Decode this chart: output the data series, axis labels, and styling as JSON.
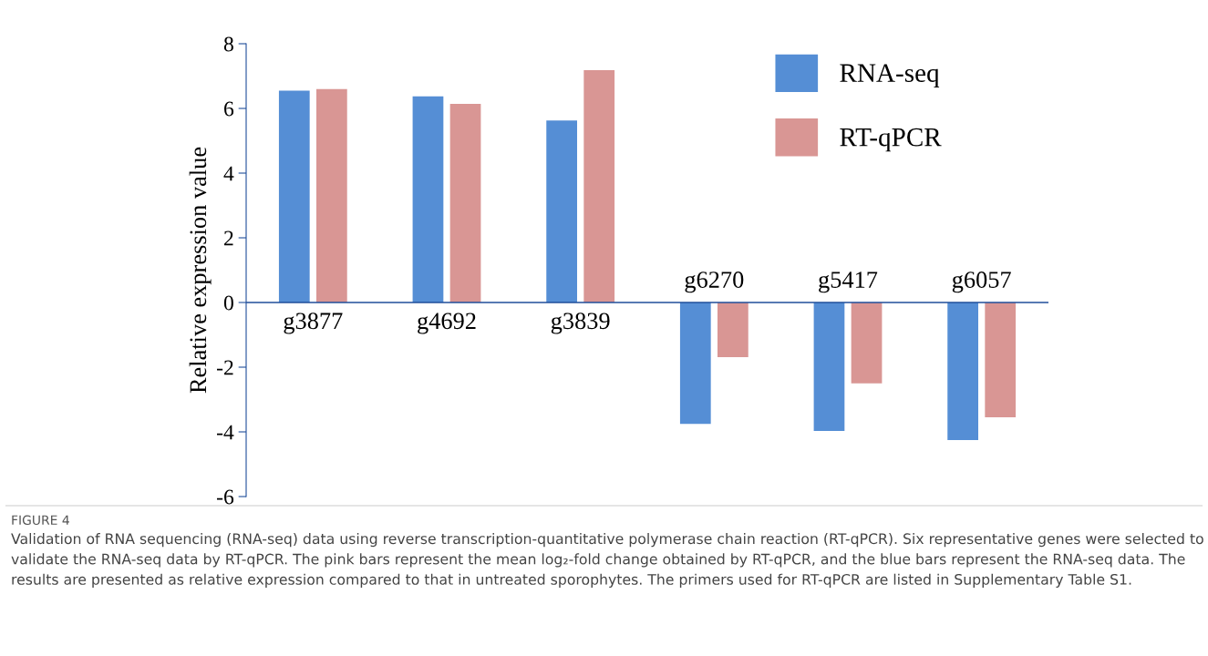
{
  "chart_data": {
    "type": "bar",
    "ylabel": "Relative expression value",
    "categories": [
      "g3877",
      "g4692",
      "g3839",
      "g6270",
      "g5417",
      "g6057"
    ],
    "series": [
      {
        "name": "RNA-seq",
        "color": "#558ed5",
        "values": [
          6.55,
          6.37,
          5.63,
          -3.75,
          -3.97,
          -4.25
        ]
      },
      {
        "name": "RT-qPCR",
        "color": "#d99694",
        "values": [
          6.6,
          6.14,
          7.18,
          -1.69,
          -2.5,
          -3.55
        ]
      }
    ],
    "ylim": [
      -6,
      8
    ],
    "yticks": [
      -6,
      -4,
      -2,
      0,
      2,
      4,
      6,
      8
    ],
    "legend": "top right",
    "grid": false,
    "annotations": [
      "FIGURE 4",
      "Validation of RNA sequencing (RNA-seq) data using reverse transcription-quantitative polymerase chain reaction (RT-qPCR). Six representative genes were selected to validate the RNA-seq data by RT-qPCR. The pink bars represent the mean log₂-fold change obtained by RT-qPCR, and the blue bars represent the RNA-seq data. The results are presented as relative expression compared to that in untreated sporophytes. The primers used for RT-qPCR are listed in Supplementary Table S1."
    ]
  }
}
